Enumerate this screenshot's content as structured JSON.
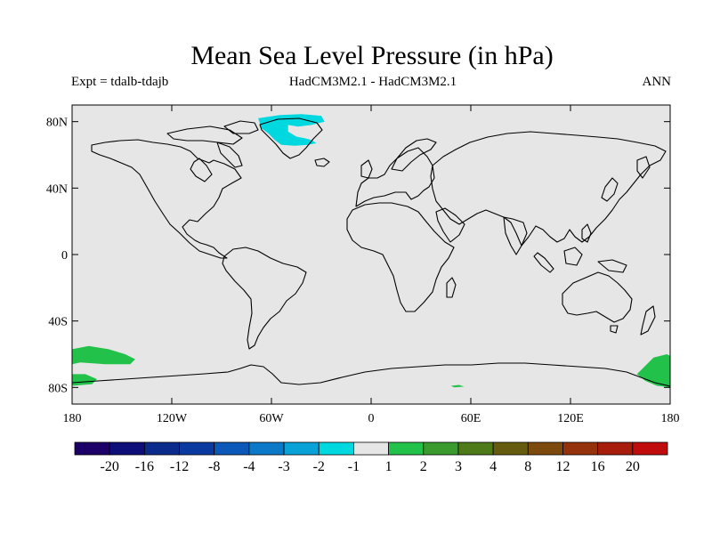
{
  "title": "Mean Sea Level Pressure (in hPa)",
  "experiment": "Expt = tdalb-tdajb",
  "model": "HadCM3M2.1 - HadCM3M2.1",
  "period": "ANN",
  "map": {
    "lon_range": [
      -180,
      180
    ],
    "lat_range": [
      -90,
      90
    ],
    "background_color": "#e6e6e6",
    "coastline_color": "#000000",
    "lat_ticks": [
      {
        "value": 80,
        "label": "80N"
      },
      {
        "value": 40,
        "label": "40N"
      },
      {
        "value": 0,
        "label": "0"
      },
      {
        "value": -40,
        "label": "40S"
      },
      {
        "value": -80,
        "label": "80S"
      }
    ],
    "lon_ticks": [
      {
        "value": -180,
        "label": "180"
      },
      {
        "value": -120,
        "label": "120W"
      },
      {
        "value": -60,
        "label": "60W"
      },
      {
        "value": 0,
        "label": "0"
      },
      {
        "value": 60,
        "label": "60E"
      },
      {
        "value": 120,
        "label": "120E"
      },
      {
        "value": 180,
        "label": "180"
      }
    ],
    "anomaly_regions": [
      {
        "name": "greenland-anomaly",
        "color": "#00d8e0",
        "category": "-2 to -1",
        "points": [
          [
            -68,
            82
          ],
          [
            -55,
            84
          ],
          [
            -42,
            84.5
          ],
          [
            -30,
            83.5
          ],
          [
            -28,
            80
          ],
          [
            -36,
            78
          ],
          [
            -44,
            77
          ],
          [
            -50,
            78
          ],
          [
            -50,
            74
          ],
          [
            -45,
            71
          ],
          [
            -40,
            70
          ],
          [
            -36,
            69
          ],
          [
            -33,
            67
          ],
          [
            -38,
            66
          ],
          [
            -46,
            65.5
          ],
          [
            -54,
            66
          ],
          [
            -58,
            69
          ],
          [
            -62,
            73
          ],
          [
            -66,
            76
          ],
          [
            -67,
            79
          ]
        ]
      },
      {
        "name": "pacific-southern-anomaly",
        "color": "#22c24a",
        "category": "1 to 2",
        "points": [
          [
            -180,
            -57
          ],
          [
            -170,
            -55
          ],
          [
            -158,
            -57
          ],
          [
            -148,
            -60
          ],
          [
            -142,
            -63
          ],
          [
            -145,
            -66
          ],
          [
            -160,
            -66
          ],
          [
            -175,
            -65
          ],
          [
            -180,
            -66
          ]
        ]
      },
      {
        "name": "ross-sea-anomaly",
        "color": "#22c24a",
        "category": "1 to 2",
        "points": [
          [
            -180,
            -72
          ],
          [
            -172,
            -72
          ],
          [
            -165,
            -75
          ],
          [
            -168,
            -78
          ],
          [
            -180,
            -79
          ]
        ]
      },
      {
        "name": "east-antarctic-anomaly",
        "color": "#22c24a",
        "category": "1 to 2",
        "points": [
          [
            160,
            -72
          ],
          [
            170,
            -62
          ],
          [
            178,
            -60
          ],
          [
            180,
            -61
          ],
          [
            180,
            -80
          ],
          [
            172,
            -79
          ],
          [
            165,
            -76
          ]
        ]
      },
      {
        "name": "weddell-small-anomaly",
        "color": "#22c24a",
        "category": "1 to 2",
        "points": [
          [
            48,
            -79
          ],
          [
            53,
            -78.5
          ],
          [
            56,
            -79.5
          ],
          [
            50,
            -80
          ]
        ]
      }
    ]
  },
  "colorbar": {
    "colors": [
      "#1c0068",
      "#0e0e7a",
      "#0a2a8c",
      "#0a3aa0",
      "#0c58b8",
      "#0c78c8",
      "#0aa0d8",
      "#00d8e0",
      "#e6e6e6",
      "#22c24a",
      "#3a9a2e",
      "#4e7a1a",
      "#665c10",
      "#7c4a0c",
      "#94320c",
      "#a81c0c",
      "#c00c0c"
    ],
    "labels": [
      "-20",
      "-16",
      "-12",
      "-8",
      "-4",
      "-3",
      "-2",
      "-1",
      "1",
      "2",
      "3",
      "4",
      "8",
      "12",
      "16",
      "20"
    ]
  }
}
